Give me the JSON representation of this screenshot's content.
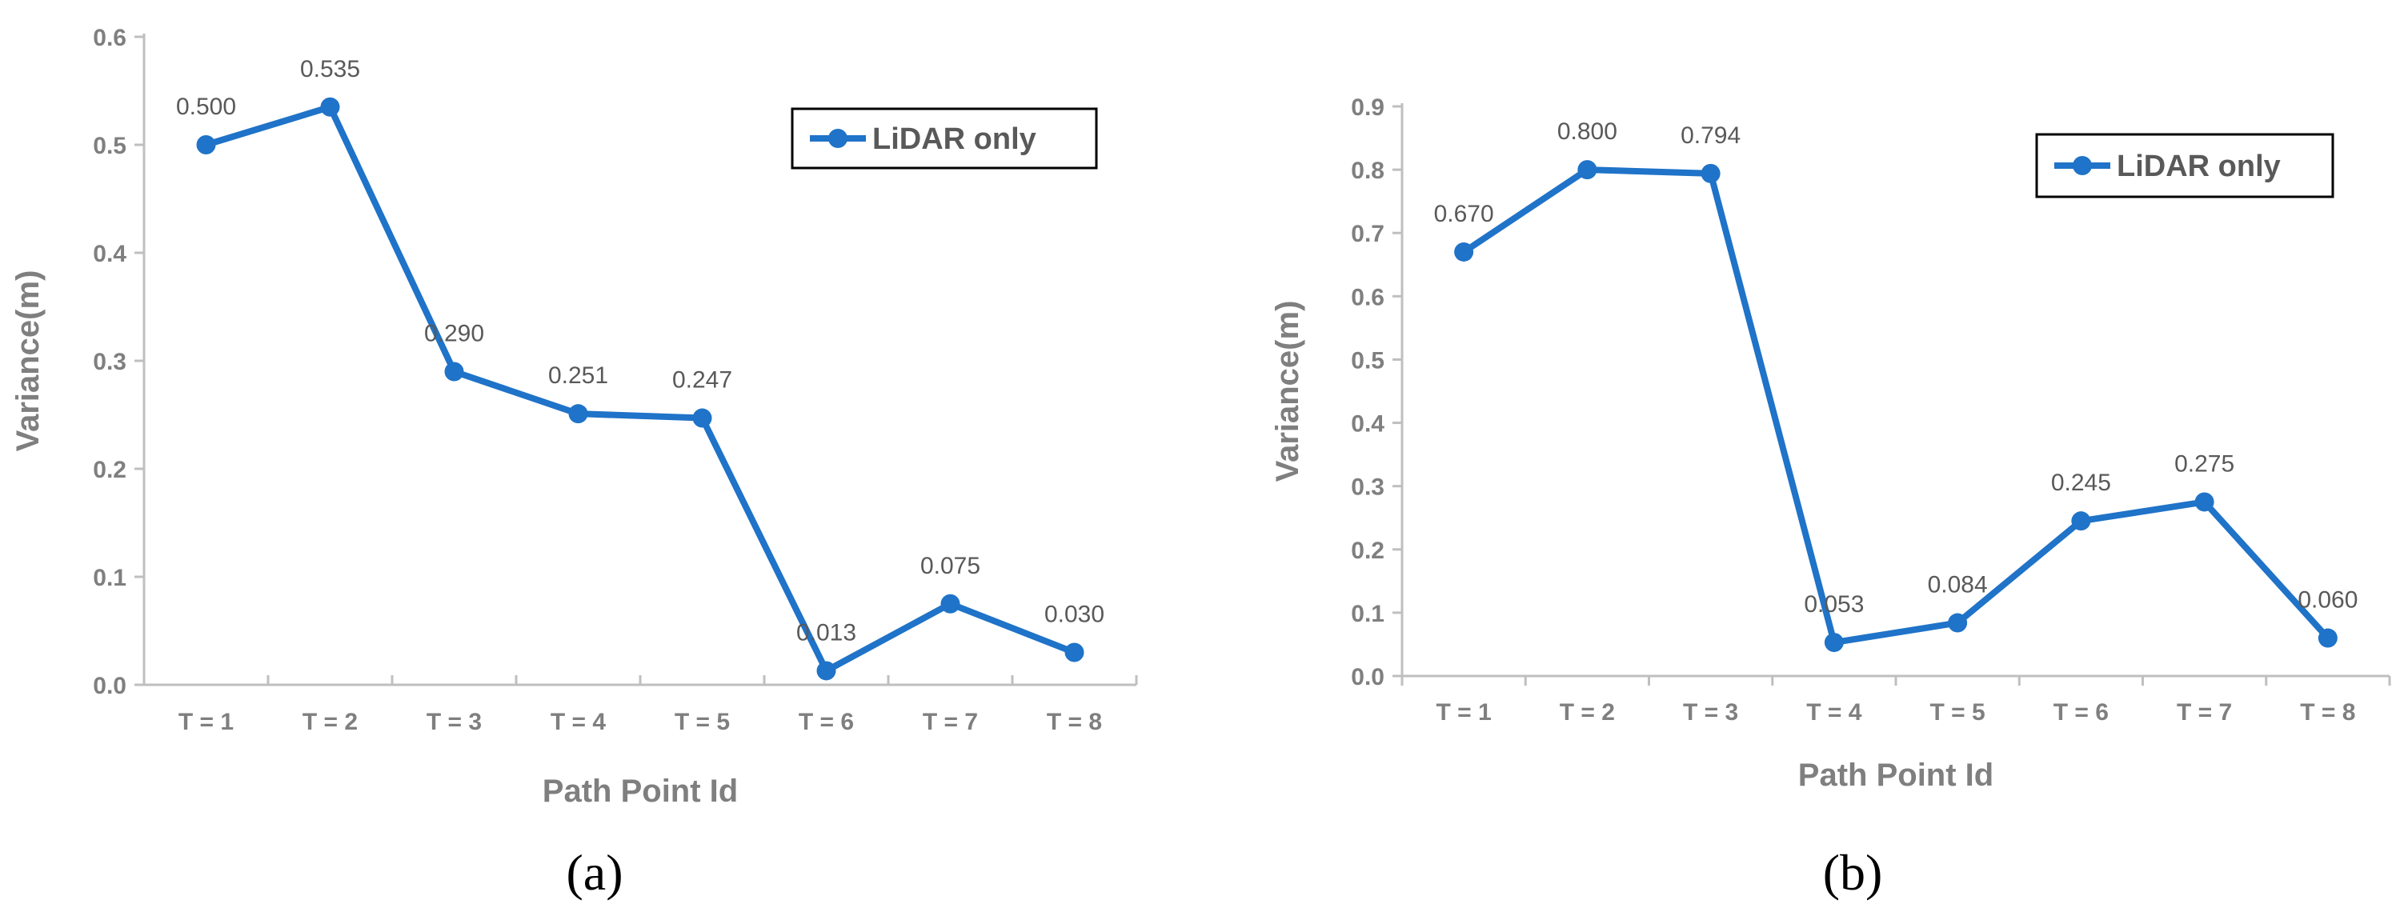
{
  "colors": {
    "series": "#1f73c8",
    "axis": "#bfbfbf",
    "text": "#7f7f7f"
  },
  "chart_data": [
    {
      "type": "line",
      "panel_label": "(a)",
      "xlabel": "Path Point Id",
      "ylabel": "Variance(m)",
      "categories": [
        "T = 1",
        "T = 2",
        "T = 3",
        "T = 4",
        "T = 5",
        "T = 6",
        "T = 7",
        "T = 8"
      ],
      "ylim": [
        0,
        0.6
      ],
      "yticks": [
        "0.0",
        "0.1",
        "0.2",
        "0.3",
        "0.4",
        "0.5",
        "0.6"
      ],
      "grid": false,
      "legend_position": "top-right",
      "series": [
        {
          "name": "LiDAR only",
          "values": [
            0.5,
            0.535,
            0.29,
            0.251,
            0.247,
            0.013,
            0.075,
            0.03
          ],
          "labels": [
            "0.500",
            "0.535",
            "0.290",
            "0.251",
            "0.247",
            "0.013",
            "0.075",
            "0.030"
          ]
        }
      ]
    },
    {
      "type": "line",
      "panel_label": "(b)",
      "xlabel": "Path Point Id",
      "ylabel": "Variance(m)",
      "categories": [
        "T = 1",
        "T = 2",
        "T = 3",
        "T = 4",
        "T = 5",
        "T = 6",
        "T = 7",
        "T = 8"
      ],
      "ylim": [
        0,
        0.9
      ],
      "yticks": [
        "0.0",
        "0.1",
        "0.2",
        "0.3",
        "0.4",
        "0.5",
        "0.6",
        "0.7",
        "0.8",
        "0.9"
      ],
      "grid": false,
      "legend_position": "top-right",
      "series": [
        {
          "name": "LiDAR only",
          "values": [
            0.67,
            0.8,
            0.794,
            0.053,
            0.084,
            0.245,
            0.275,
            0.06
          ],
          "labels": [
            "0.670",
            "0.800",
            "0.794",
            "0.053",
            "0.084",
            "0.245",
            "0.275",
            "0.060"
          ]
        }
      ]
    }
  ]
}
